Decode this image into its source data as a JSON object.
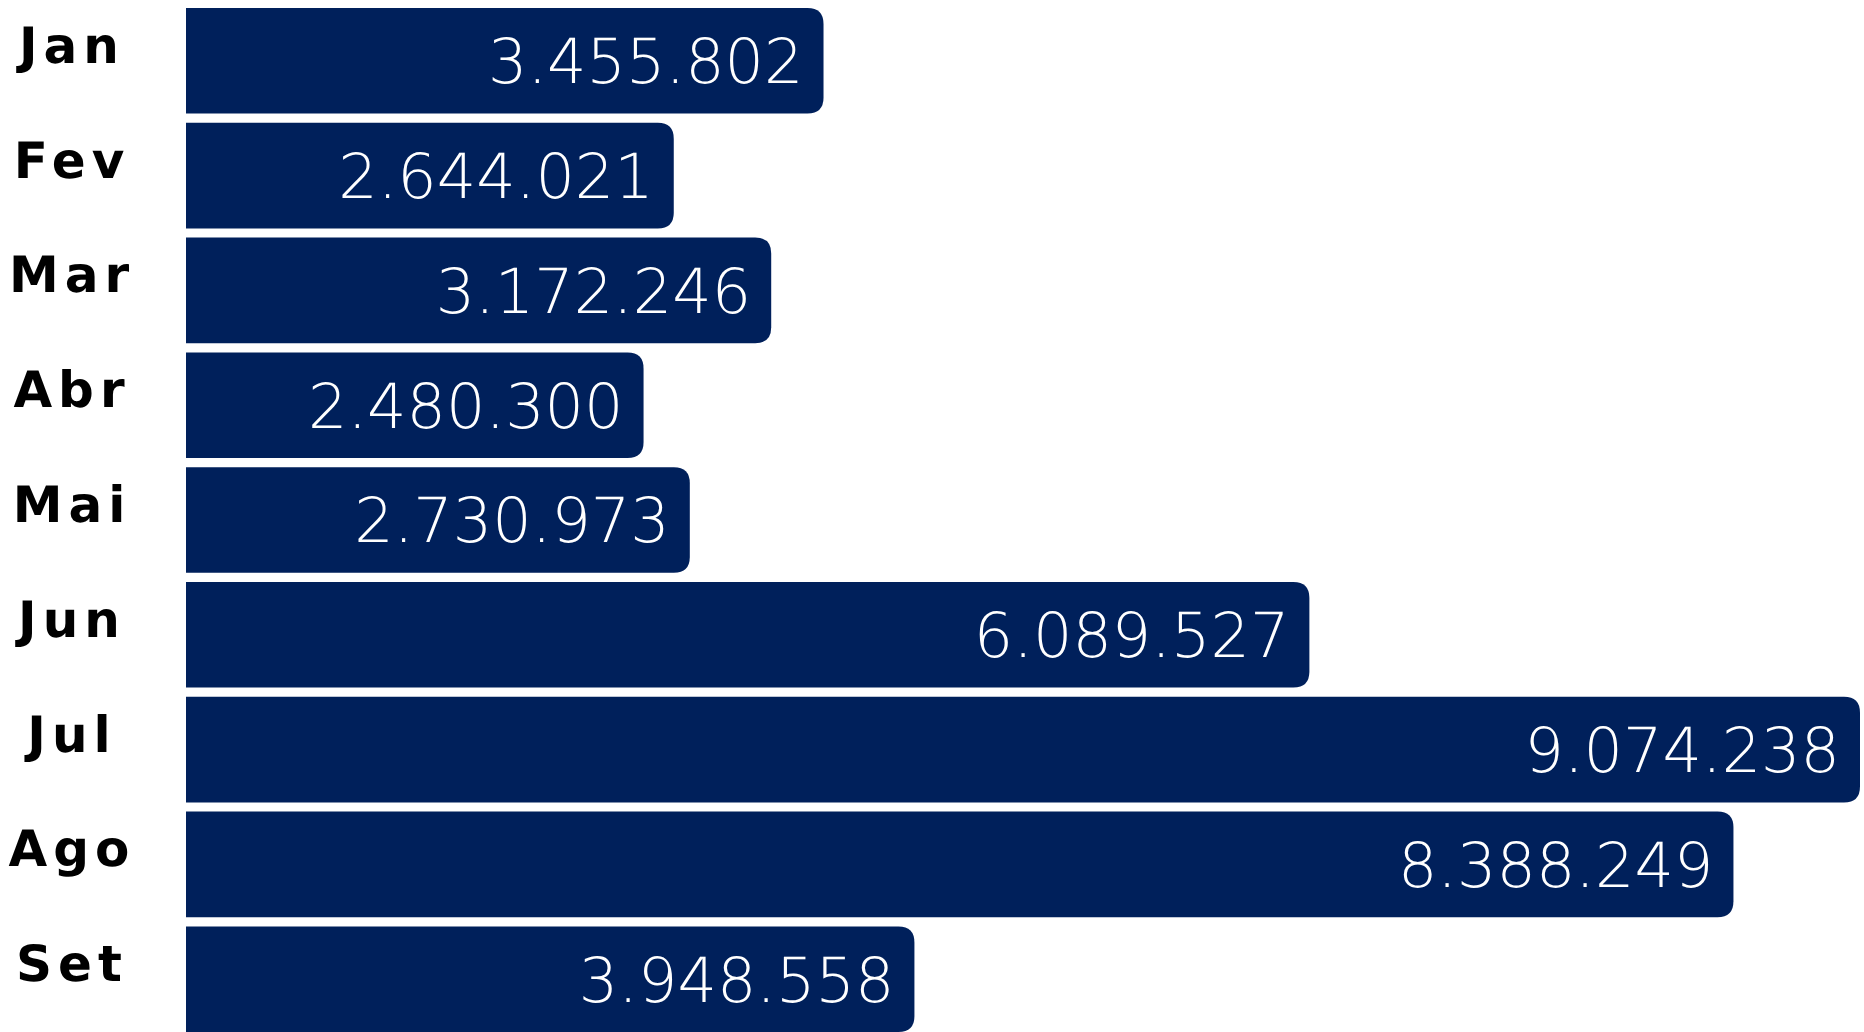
{
  "chart_data": {
    "type": "bar",
    "orientation": "horizontal",
    "categories": [
      "Jan",
      "Fev",
      "Mar",
      "Abr",
      "Mai",
      "Jun",
      "Jul",
      "Ago",
      "Set"
    ],
    "values": [
      3455802,
      2644021,
      3172246,
      2480300,
      2730973,
      6089527,
      9074238,
      8388249,
      3948558
    ],
    "value_labels": [
      "3.455.802",
      "2.644.021",
      "3.172.246",
      "2.480.300",
      "2.730.973",
      "6.089.527",
      "9.074.238",
      "8.388.249",
      "3.948.558"
    ],
    "color": "#00205b",
    "tick_labels": "y"
  }
}
